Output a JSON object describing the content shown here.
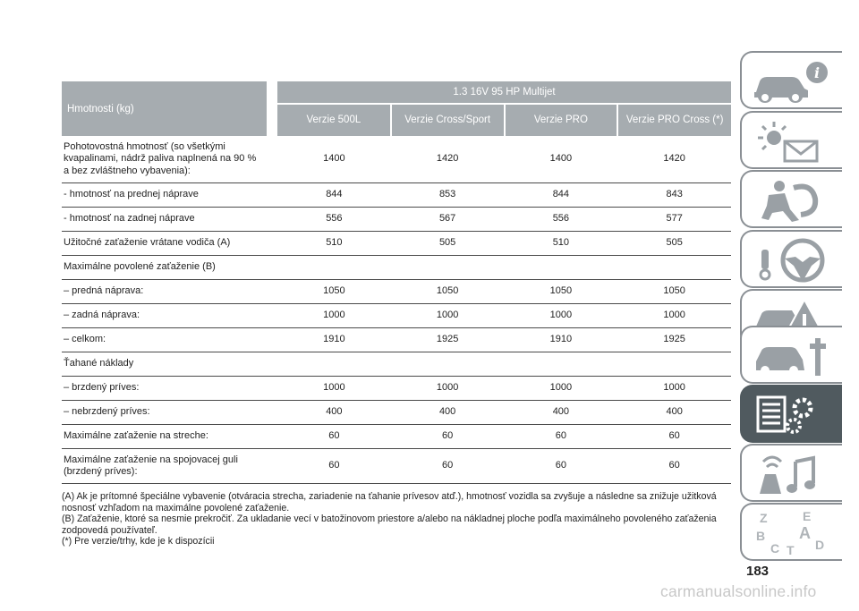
{
  "table": {
    "header_label": "Hmotnosti (kg)",
    "engine": "1.3 16V 95 HP Multijet",
    "variants": [
      "Verzie 500L",
      "Verzie Cross/Sport",
      "Verzie PRO",
      "Verzie PRO Cross (*)"
    ],
    "rows": [
      {
        "label": "Pohotovostná hmotnosť (so všetkými kvapalinami, nádrž paliva naplnená na 90 % a bez zvláštneho vybavenia):",
        "values": [
          "1400",
          "1420",
          "1400",
          "1420"
        ]
      },
      {
        "label": "- hmotnosť na prednej náprave",
        "values": [
          "844",
          "853",
          "844",
          "843"
        ]
      },
      {
        "label": "- hmotnosť na zadnej náprave",
        "values": [
          "556",
          "567",
          "556",
          "577"
        ]
      },
      {
        "label": "Užitočné zaťaženie vrátane vodiča (A)",
        "values": [
          "510",
          "505",
          "510",
          "505"
        ]
      },
      {
        "label": "Maximálne povolené zaťaženie (B)",
        "values": [
          "",
          "",
          "",
          ""
        ]
      },
      {
        "label": "– predná náprava:",
        "values": [
          "1050",
          "1050",
          "1050",
          "1050"
        ]
      },
      {
        "label": "– zadná náprava:",
        "values": [
          "1000",
          "1000",
          "1000",
          "1000"
        ]
      },
      {
        "label": "– celkom:",
        "values": [
          "1910",
          "1925",
          "1910",
          "1925"
        ]
      },
      {
        "label": "Ťahané náklady",
        "values": [
          "",
          "",
          "",
          ""
        ]
      },
      {
        "label": "– brzdený príves:",
        "values": [
          "1000",
          "1000",
          "1000",
          "1000"
        ]
      },
      {
        "label": "– nebrzdený príves:",
        "values": [
          "400",
          "400",
          "400",
          "400"
        ]
      },
      {
        "label": "Maximálne zaťaženie na streche:",
        "values": [
          "60",
          "60",
          "60",
          "60"
        ]
      },
      {
        "label": "Maximálne zaťaženie na spojovacej guli (brzdený príves):",
        "values": [
          "60",
          "60",
          "60",
          "60"
        ]
      }
    ]
  },
  "notes": [
    "(A) Ak je prítomné špeciálne vybavenie (otváracia strecha, zariadenie na ťahanie prívesov atď.), hmotnosť vozidla sa zvyšuje a následne sa znižuje užitková nosnosť vzhľadom na maximálne povolené zaťaženie.",
    "(B) Zaťaženie, ktoré sa nesmie prekročiť. Za ukladanie vecí v batožinovom priestore a/alebo na nákladnej ploche podľa maximálneho povoleného zaťaženia zodpovedá používateľ.",
    "(*) Pre verzie/trhy, kde je k dispozícii"
  ],
  "page_number": "183",
  "watermark": "carmanualsonline.info",
  "side_tabs": {
    "icons": [
      "car-info-icon",
      "warning-lights-icon",
      "airbag-icon",
      "steering-wheel-icon",
      "emergency-icon",
      "maintenance-icon",
      "technical-data-icon",
      "multimedia-icon",
      "index-icon"
    ],
    "index_letters": [
      "Z",
      "E",
      "B",
      "A",
      "C",
      "T",
      "D"
    ],
    "accent": "#505a5f",
    "border": "#8a8f94"
  }
}
